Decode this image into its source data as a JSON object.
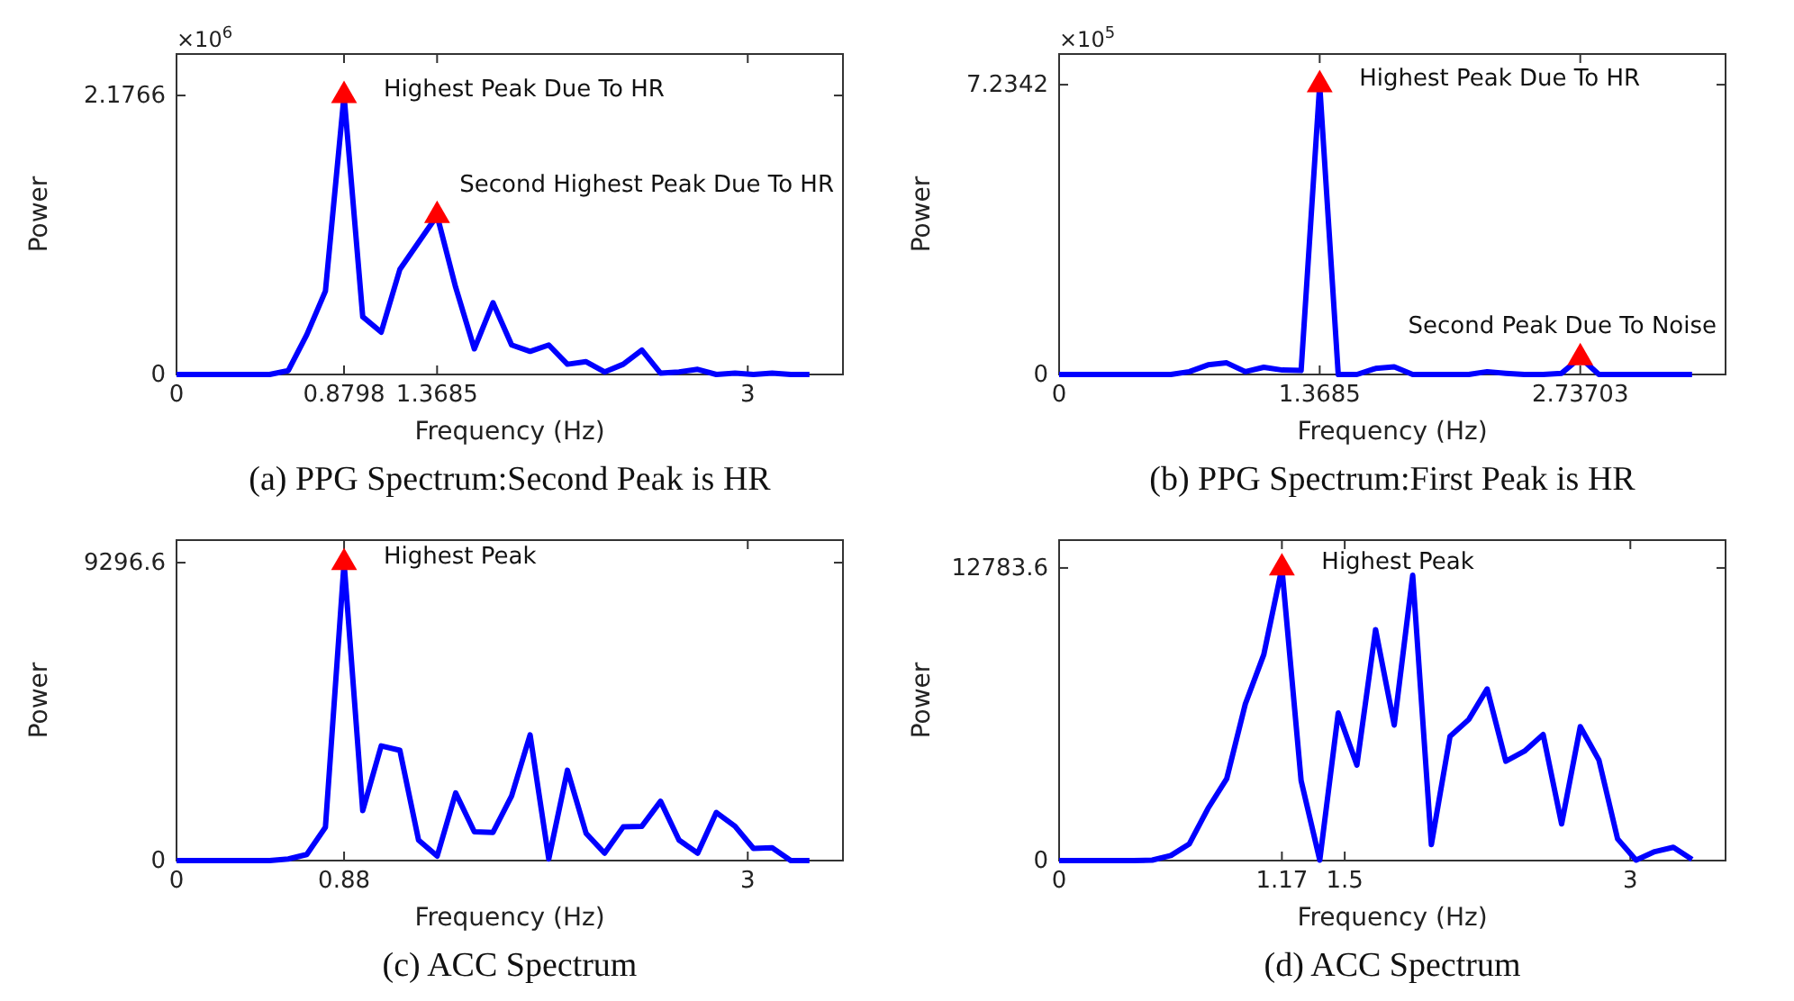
{
  "chart_data": [
    {
      "type": "line",
      "title": "(a) PPG Spectrum:Second Peak is HR",
      "xlabel": "Frequency (Hz)",
      "ylabel": "Power",
      "xlim": [
        0,
        3.5
      ],
      "ylim": [
        0,
        2.5
      ],
      "xticks": [
        0,
        0.8798,
        1.3685,
        3
      ],
      "yticks": [
        0,
        2.1766
      ],
      "x": [
        0,
        0.098,
        0.196,
        0.293,
        0.391,
        0.489,
        0.587,
        0.684,
        0.782,
        0.8798,
        0.978,
        1.075,
        1.173,
        1.271,
        1.3685,
        1.466,
        1.564,
        1.662,
        1.76,
        1.857,
        1.955,
        2.053,
        2.151,
        2.248,
        2.346,
        2.444,
        2.542,
        2.639,
        2.737,
        2.835,
        2.933,
        3.03,
        3.128,
        3.226,
        3.324
      ],
      "series": [
        {
          "color": "#0000ff",
          "values": [
            0,
            0,
            0,
            0,
            0,
            0,
            0.03,
            0.31,
            0.65,
            2.1766,
            0.45,
            0.33,
            0.82,
            1.03,
            1.24,
            0.68,
            0.2,
            0.56,
            0.23,
            0.18,
            0.23,
            0.08,
            0.1,
            0.02,
            0.08,
            0.19,
            0.01,
            0.02,
            0.04,
            0,
            0.01,
            0,
            0.01,
            0,
            0
          ]
        },
        {
          "type": "scatter",
          "marker": "triangle",
          "color": "#ff0000",
          "x": [
            0.8798,
            1.3685
          ],
          "values": [
            2.1766,
            1.24
          ]
        }
      ],
      "annotations": [
        "×10$^{6}$",
        {
          "text": "Highest Peak Due To HR",
          "x": 0.8798,
          "y": 2.1766
        },
        {
          "text": "Second Highest Peak Due To HR",
          "x": 1.3685,
          "y": 1.24
        }
      ]
    },
    {
      "type": "line",
      "title": "(b) PPG Spectrum:First Peak is HR",
      "xlabel": "Frequency (Hz)",
      "ylabel": "Power",
      "xlim": [
        0,
        3.5
      ],
      "ylim": [
        0,
        8
      ],
      "xticks": [
        0,
        1.3685,
        2.73703
      ],
      "yticks": [
        0,
        7.2342
      ],
      "x": [
        0,
        0.098,
        0.196,
        0.293,
        0.391,
        0.489,
        0.587,
        0.684,
        0.782,
        0.88,
        0.978,
        1.075,
        1.173,
        1.271,
        1.3685,
        1.466,
        1.564,
        1.662,
        1.76,
        1.857,
        1.955,
        2.053,
        2.151,
        2.248,
        2.346,
        2.444,
        2.542,
        2.639,
        2.73703,
        2.835,
        2.933,
        3.03,
        3.128,
        3.226,
        3.324
      ],
      "series": [
        {
          "color": "#0000ff",
          "values": [
            0,
            0,
            0,
            0,
            0,
            0,
            0,
            0.07,
            0.24,
            0.29,
            0.07,
            0.18,
            0.11,
            0.1,
            7.2342,
            0,
            0,
            0.15,
            0.19,
            0,
            0,
            0,
            0,
            0.07,
            0.03,
            0,
            0,
            0.03,
            0.42,
            0,
            0,
            0,
            0,
            0,
            0
          ]
        },
        {
          "type": "scatter",
          "marker": "triangle",
          "color": "#ff0000",
          "x": [
            1.3685,
            2.73703
          ],
          "values": [
            7.2342,
            0.42
          ]
        }
      ],
      "annotations": [
        "×10$^{5}$",
        {
          "text": "Highest Peak Due To HR",
          "x": 1.3685,
          "y": 7.2342
        },
        {
          "text": "Second Peak Due To Noise",
          "x": 2.73703,
          "y": 0.42
        }
      ]
    },
    {
      "type": "line",
      "title": "(c) ACC Spectrum",
      "xlabel": "Frequency (Hz)",
      "ylabel": "Power",
      "xlim": [
        0,
        3.5
      ],
      "ylim": [
        0,
        10000
      ],
      "xticks": [
        0,
        0.88,
        3
      ],
      "yticks": [
        0,
        9296.6
      ],
      "x": [
        0,
        0.098,
        0.196,
        0.293,
        0.391,
        0.489,
        0.587,
        0.684,
        0.782,
        0.88,
        0.978,
        1.075,
        1.173,
        1.271,
        1.369,
        1.466,
        1.564,
        1.662,
        1.76,
        1.857,
        1.955,
        2.053,
        2.151,
        2.248,
        2.346,
        2.444,
        2.542,
        2.639,
        2.737,
        2.835,
        2.933,
        3.03,
        3.128,
        3.226,
        3.324
      ],
      "series": [
        {
          "color": "#0000ff",
          "values": [
            0,
            0,
            0,
            0,
            0,
            0,
            50,
            190,
            1040,
            9296.6,
            1560,
            3580,
            3440,
            640,
            140,
            2110,
            900,
            880,
            2020,
            3920,
            50,
            2820,
            850,
            230,
            1050,
            1070,
            1850,
            640,
            230,
            1500,
            1070,
            380,
            400,
            0,
            0
          ]
        },
        {
          "type": "scatter",
          "marker": "triangle",
          "color": "#ff0000",
          "x": [
            0.88
          ],
          "values": [
            9296.6
          ]
        }
      ],
      "annotations": [
        {
          "text": "Highest Peak",
          "x": 0.88,
          "y": 9296.6
        }
      ]
    },
    {
      "type": "line",
      "title": "(d) ACC Spectrum",
      "xlabel": "Frequency (Hz)",
      "ylabel": "Power",
      "xlim": [
        0,
        3.5
      ],
      "ylim": [
        0,
        14000
      ],
      "xticks": [
        0,
        1.17,
        1.5,
        3
      ],
      "yticks": [
        0,
        12783.6
      ],
      "x": [
        0,
        0.098,
        0.196,
        0.293,
        0.391,
        0.489,
        0.587,
        0.684,
        0.782,
        0.88,
        0.978,
        1.075,
        1.17,
        1.271,
        1.369,
        1.466,
        1.564,
        1.662,
        1.76,
        1.857,
        1.955,
        2.053,
        2.151,
        2.248,
        2.346,
        2.444,
        2.542,
        2.639,
        2.737,
        2.835,
        2.933,
        3.03,
        3.128,
        3.226,
        3.324
      ],
      "series": [
        {
          "color": "#0000ff",
          "values": [
            0,
            0,
            0,
            0,
            0,
            20,
            220,
            730,
            2280,
            3570,
            6840,
            9000,
            12783.6,
            3490,
            20,
            6450,
            4170,
            10090,
            5920,
            12470,
            700,
            5430,
            6160,
            7500,
            4340,
            4780,
            5510,
            1600,
            5850,
            4390,
            950,
            20,
            390,
            580,
            50
          ]
        },
        {
          "type": "scatter",
          "marker": "triangle",
          "color": "#ff0000",
          "x": [
            1.17
          ],
          "values": [
            12783.6
          ]
        }
      ],
      "annotations": [
        {
          "text": "Highest Peak",
          "x": 1.17,
          "y": 12783.6
        }
      ]
    }
  ]
}
